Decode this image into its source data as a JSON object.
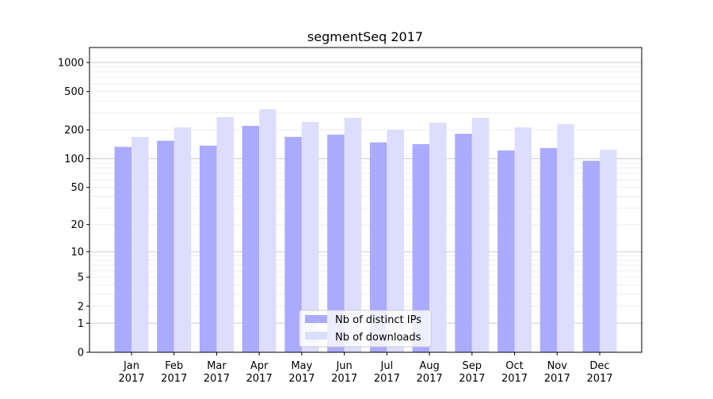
{
  "chart_data": {
    "type": "bar",
    "title": "segmentSeq 2017",
    "xlabel": "",
    "ylabel": "",
    "yscale": "symlog (log10(1+y))",
    "ylim": [
      0,
      1300
    ],
    "yticks": [
      0,
      1,
      2,
      5,
      10,
      20,
      50,
      100,
      200,
      500,
      1000
    ],
    "ytick_labels": [
      "0",
      "1",
      "2",
      "5",
      "10",
      "20",
      "50",
      "100",
      "200",
      "500",
      "1000"
    ],
    "grid": true,
    "legend_position": "bottom-center",
    "categories": [
      "Jan\n2017",
      "Feb\n2017",
      "Mar\n2017",
      "Apr\n2017",
      "May\n2017",
      "Jun\n2017",
      "Jul\n2017",
      "Aug\n2017",
      "Sep\n2017",
      "Oct\n2017",
      "Nov\n2017",
      "Dec\n2017"
    ],
    "category_months": [
      "Jan",
      "Feb",
      "Mar",
      "Apr",
      "May",
      "Jun",
      "Jul",
      "Aug",
      "Sep",
      "Oct",
      "Nov",
      "Dec"
    ],
    "category_year": "2017",
    "series": [
      {
        "name": "Nb of distinct IPs",
        "color": "#aaaaff",
        "values": [
          133,
          154,
          137,
          220,
          169,
          178,
          148,
          142,
          182,
          122,
          129,
          95
        ]
      },
      {
        "name": "Nb of downloads",
        "color": "#ddddff",
        "values": [
          169,
          212,
          271,
          328,
          242,
          266,
          200,
          237,
          266,
          212,
          229,
          124
        ]
      }
    ]
  }
}
